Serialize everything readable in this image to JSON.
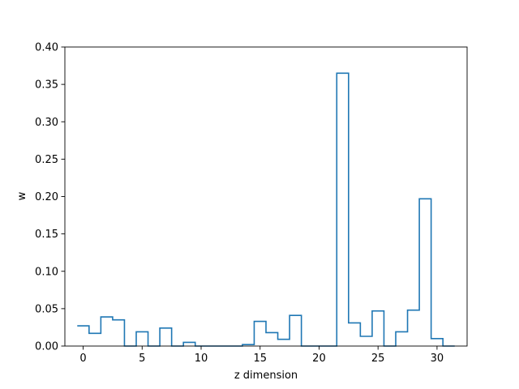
{
  "chart_data": {
    "type": "line",
    "style": "step-histogram",
    "title": "",
    "xlabel": "z dimension",
    "ylabel": "w",
    "xlim": [
      -1.55,
      32.55
    ],
    "ylim": [
      0,
      0.4
    ],
    "x_ticks": [
      0,
      5,
      10,
      15,
      20,
      25,
      30
    ],
    "x_tick_labels": [
      "0",
      "5",
      "10",
      "15",
      "20",
      "25",
      "30"
    ],
    "y_ticks": [
      0.0,
      0.05,
      0.1,
      0.15,
      0.2,
      0.25,
      0.3,
      0.35,
      0.4
    ],
    "y_tick_labels": [
      "0.00",
      "0.05",
      "0.10",
      "0.15",
      "0.20",
      "0.25",
      "0.30",
      "0.35",
      "0.40"
    ],
    "grid": false,
    "line_color": "#1f77b4",
    "x": [
      0,
      1,
      2,
      3,
      4,
      5,
      6,
      7,
      8,
      9,
      10,
      11,
      12,
      13,
      14,
      15,
      16,
      17,
      18,
      19,
      20,
      21,
      22,
      23,
      24,
      25,
      26,
      27,
      28,
      29,
      30,
      31
    ],
    "values": [
      0.027,
      0.017,
      0.039,
      0.035,
      0.0,
      0.019,
      0.0,
      0.024,
      0.0,
      0.005,
      0.0,
      0.0,
      0.0,
      0.0,
      0.002,
      0.033,
      0.018,
      0.009,
      0.041,
      0.0,
      0.0,
      0.0,
      0.365,
      0.031,
      0.013,
      0.047,
      0.0,
      0.019,
      0.048,
      0.197,
      0.01,
      0.0
    ]
  }
}
